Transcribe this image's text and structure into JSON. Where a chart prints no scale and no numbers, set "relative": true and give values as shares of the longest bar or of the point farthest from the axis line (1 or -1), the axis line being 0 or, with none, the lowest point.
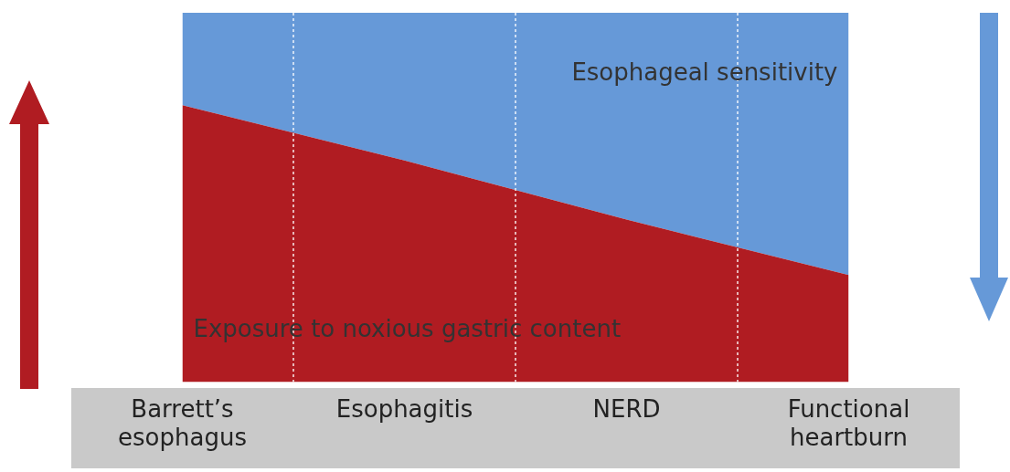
{
  "chart_data": {
    "type": "area",
    "relative": true,
    "stacked": true,
    "grid": "x",
    "legend": false,
    "marker": "none",
    "categories": [
      "Barrett’s esophagus",
      "Esophagitis",
      "NERD",
      "Functional heartburn"
    ],
    "series": [
      {
        "name": "Exposure to noxious gastric content",
        "color": "#b01c22",
        "values": [
          0.75,
          0.6,
          0.44,
          0.29
        ]
      },
      {
        "name": "Esophageal sensitivity",
        "color": "#6699d8",
        "values": [
          0.25,
          0.4,
          0.56,
          0.71
        ]
      }
    ]
  }
}
